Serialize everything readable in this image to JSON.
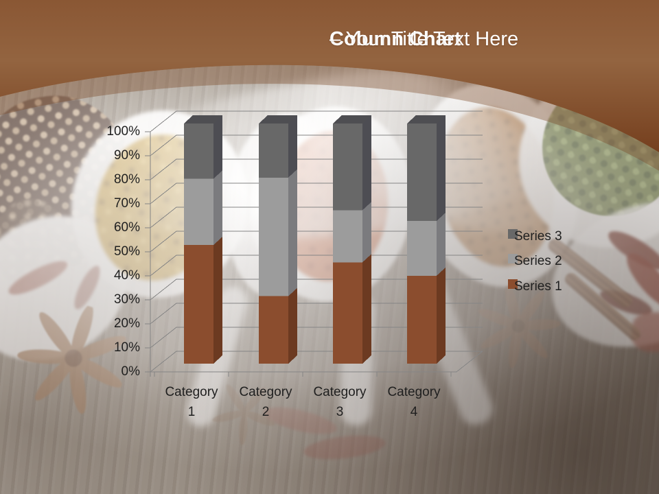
{
  "header": {
    "title_bold": "Column Chart",
    "title_regular": "– Your Title Text Here",
    "band_top_color": "#8A5734",
    "band_bottom_color": "#753F1E"
  },
  "chart_data": {
    "type": "bar",
    "subtype": "3d-100-percent-stacked-column",
    "title": "Column Chart – Your Title Text Here",
    "categories": [
      "Category 1",
      "Category 2",
      "Category 3",
      "Category 4"
    ],
    "series": [
      {
        "name": "Series 1",
        "color": "#8B4D2E",
        "side_color": "#6C3A21",
        "percent": [
          49.4,
          28.1,
          42.2,
          36.6
        ]
      },
      {
        "name": "Series 2",
        "color": "#9C9C9C",
        "side_color": "#7B7B7E",
        "percent": [
          27.6,
          49.4,
          21.7,
          22.8
        ]
      },
      {
        "name": "Series 3",
        "color": "#686868",
        "side_color": "#4D4D53",
        "top_color": "#4E4E52",
        "percent": [
          23.0,
          22.5,
          36.1,
          40.6
        ]
      }
    ],
    "y_ticks": [
      "0%",
      "10%",
      "20%",
      "30%",
      "40%",
      "50%",
      "60%",
      "70%",
      "80%",
      "90%",
      "100%"
    ],
    "ylim": [
      0,
      100
    ],
    "grid": true,
    "legend_position": "right",
    "legend_order": [
      "Series 3",
      "Series 2",
      "Series 1"
    ],
    "axis_text_color": "#1F1F1F",
    "gridline_color": "#858585"
  }
}
